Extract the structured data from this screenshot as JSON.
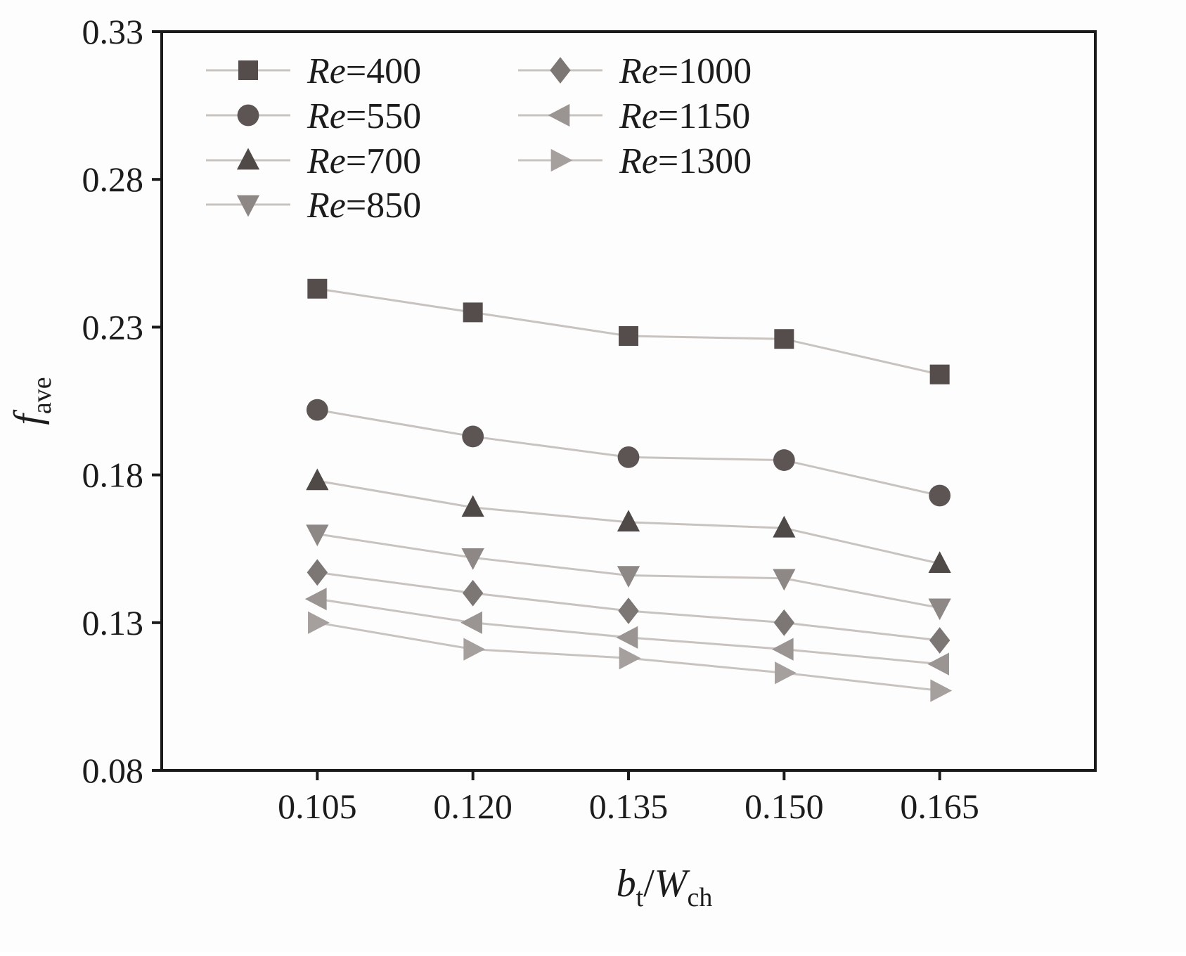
{
  "chart_data": {
    "type": "line",
    "title": "",
    "xlabel_parts": {
      "main1": "b",
      "sub1": "t",
      "slash": "/",
      "main2": "W",
      "sub2": "ch"
    },
    "ylabel_parts": {
      "main": "f",
      "sub": "ave"
    },
    "xlim": [
      0.09,
      0.18
    ],
    "ylim": [
      0.08,
      0.33
    ],
    "x_ticks": [
      0.105,
      0.12,
      0.135,
      0.15,
      0.165
    ],
    "x_tick_labels": [
      "0.105",
      "0.120",
      "0.135",
      "0.150",
      "0.165"
    ],
    "y_ticks": [
      0.08,
      0.13,
      0.18,
      0.23,
      0.28,
      0.33
    ],
    "y_tick_labels": [
      "0.08",
      "0.13",
      "0.18",
      "0.23",
      "0.28",
      "0.33"
    ],
    "grid": false,
    "legend_position": "top-left-inside",
    "axis_color": "#1a1a1a",
    "line_color": "#c9c3c0",
    "x": [
      0.105,
      0.12,
      0.135,
      0.15,
      0.165
    ],
    "series": [
      {
        "name": "Re=400",
        "italic_part": "Re",
        "rest_part": "=400",
        "marker": "square",
        "color": "#544d4b",
        "values": [
          0.243,
          0.235,
          0.227,
          0.226,
          0.214
        ]
      },
      {
        "name": "Re=550",
        "italic_part": "Re",
        "rest_part": "=550",
        "marker": "circle",
        "color": "#5c5553",
        "values": [
          0.202,
          0.193,
          0.186,
          0.185,
          0.173
        ]
      },
      {
        "name": "Re=700",
        "italic_part": "Re",
        "rest_part": "=700",
        "marker": "triangle-up",
        "color": "#4f4947",
        "values": [
          0.178,
          0.169,
          0.164,
          0.162,
          0.15
        ]
      },
      {
        "name": "Re=850",
        "italic_part": "Re",
        "rest_part": "=850",
        "marker": "triangle-down",
        "color": "#8d8785",
        "values": [
          0.16,
          0.152,
          0.146,
          0.145,
          0.135
        ]
      },
      {
        "name": "Re=1000",
        "italic_part": "Re",
        "rest_part": "=1000",
        "marker": "diamond",
        "color": "#7c7674",
        "values": [
          0.147,
          0.14,
          0.134,
          0.13,
          0.124
        ]
      },
      {
        "name": "Re=1150",
        "italic_part": "Re",
        "rest_part": "=1150",
        "marker": "triangle-left",
        "color": "#9a9492",
        "values": [
          0.138,
          0.13,
          0.125,
          0.121,
          0.116
        ]
      },
      {
        "name": "Re=1300",
        "italic_part": "Re",
        "rest_part": "=1300",
        "marker": "triangle-right",
        "color": "#a59f9d",
        "values": [
          0.13,
          0.121,
          0.118,
          0.113,
          0.107
        ]
      }
    ]
  }
}
